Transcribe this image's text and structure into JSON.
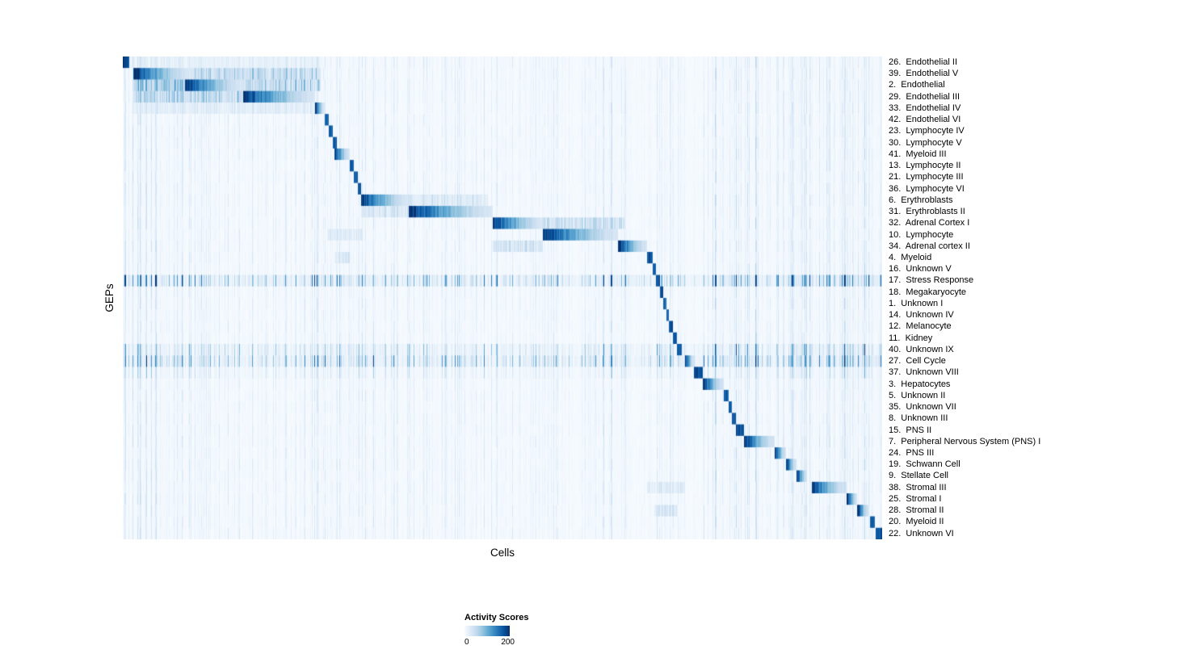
{
  "chart_data": {
    "type": "heatmap",
    "title": "",
    "xlabel": "Cells",
    "ylabel": "GEPs",
    "colorbar": {
      "title": "Activity Scores",
      "min": 0,
      "max": 200,
      "min_label": "0",
      "max_label": "200"
    },
    "colormap": [
      "#f7fbff",
      "#deebf7",
      "#c6dbef",
      "#9ecae1",
      "#6baed6",
      "#4292c6",
      "#2171b5",
      "#08519c",
      "#08306b"
    ],
    "rows": [
      {
        "label": "26.  Endothelial II",
        "block": [
          0.0,
          0.008
        ],
        "peak": 200,
        "bands": [
          [
            0.008,
            0.26,
            15
          ]
        ]
      },
      {
        "label": "39.  Endothelial V",
        "block": [
          0.013,
          0.088
        ],
        "peak": 200,
        "bands": [
          [
            0.088,
            0.26,
            42
          ]
        ]
      },
      {
        "label": "2.  Endothelial",
        "block": [
          0.081,
          0.158
        ],
        "peak": 200,
        "bands": [
          [
            0.013,
            0.081,
            55
          ],
          [
            0.158,
            0.26,
            45
          ]
        ]
      },
      {
        "label": "29.  Endothelial III",
        "block": [
          0.158,
          0.253
        ],
        "peak": 200,
        "bands": [
          [
            0.013,
            0.158,
            45
          ]
        ]
      },
      {
        "label": "33.  Endothelial IV",
        "block": [
          0.253,
          0.265
        ],
        "peak": 190,
        "bands": [
          [
            0.013,
            0.253,
            18
          ]
        ]
      },
      {
        "label": "42.  Endothelial VI",
        "block": [
          0.265,
          0.271
        ],
        "peak": 180
      },
      {
        "label": "23.  Lymphocyte IV",
        "block": [
          0.271,
          0.276
        ],
        "peak": 180
      },
      {
        "label": "30.  Lymphocyte V",
        "block": [
          0.276,
          0.281
        ],
        "peak": 180
      },
      {
        "label": "41.  Myeloid III",
        "block": [
          0.278,
          0.298
        ],
        "peak": 200
      },
      {
        "label": "13.  Lymphocyte II",
        "block": [
          0.298,
          0.304
        ],
        "peak": 190
      },
      {
        "label": "21.  Lymphocyte III",
        "block": [
          0.304,
          0.309
        ],
        "peak": 185
      },
      {
        "label": "36.  Lymphocyte VI",
        "block": [
          0.309,
          0.313
        ],
        "peak": 180
      },
      {
        "label": "6.  Erythroblasts",
        "block": [
          0.313,
          0.376
        ],
        "peak": 200,
        "bands": [
          [
            0.376,
            0.48,
            24
          ]
        ]
      },
      {
        "label": "31.  Erythroblasts II",
        "block": [
          0.376,
          0.487
        ],
        "peak": 200,
        "bands": [
          [
            0.313,
            0.376,
            24
          ]
        ]
      },
      {
        "label": "32.  Adrenal Cortex I",
        "block": [
          0.487,
          0.553
        ],
        "peak": 200,
        "bands": [
          [
            0.553,
            0.66,
            35
          ]
        ]
      },
      {
        "label": "10.  Lymphocyte",
        "block": [
          0.553,
          0.652
        ],
        "peak": 200,
        "bands": [
          [
            0.27,
            0.315,
            20
          ]
        ]
      },
      {
        "label": "34.  Adrenal cortex II",
        "block": [
          0.652,
          0.69
        ],
        "peak": 200,
        "bands": [
          [
            0.487,
            0.553,
            30
          ]
        ]
      },
      {
        "label": "4.  Myeloid",
        "block": [
          0.69,
          0.697
        ],
        "peak": 190,
        "bands": [
          [
            0.278,
            0.298,
            25
          ]
        ]
      },
      {
        "label": "16.  Unknown V",
        "block": [
          0.697,
          0.702
        ],
        "peak": 185
      },
      {
        "label": "17.  Stress Response",
        "block": [
          0.702,
          0.707
        ],
        "peak": 190,
        "noise": 42
      },
      {
        "label": "18.  Megakaryocyte",
        "block": [
          0.707,
          0.711
        ],
        "peak": 185
      },
      {
        "label": "1.  Unknown I",
        "block": [
          0.711,
          0.715
        ],
        "peak": 180
      },
      {
        "label": "14.  Unknown IV",
        "block": [
          0.715,
          0.719
        ],
        "peak": 185
      },
      {
        "label": "12.  Melanocyte",
        "block": [
          0.719,
          0.724
        ],
        "peak": 190
      },
      {
        "label": "11.  Kidney",
        "block": [
          0.724,
          0.729
        ],
        "peak": 185
      },
      {
        "label": "40.  Unknown IX",
        "block": [
          0.729,
          0.736
        ],
        "peak": 190,
        "noise": 26
      },
      {
        "label": "27.  Cell Cycle",
        "block": [
          0.74,
          0.752
        ],
        "peak": 200,
        "noise": 38
      },
      {
        "label": "37.  Unknown VIII",
        "block": [
          0.752,
          0.763
        ],
        "peak": 200,
        "noise": 14
      },
      {
        "label": "3.  Hepatocytes",
        "block": [
          0.763,
          0.791
        ],
        "peak": 200
      },
      {
        "label": "5.  Unknown II",
        "block": [
          0.791,
          0.797
        ],
        "peak": 185
      },
      {
        "label": "35.  Unknown VII",
        "block": [
          0.797,
          0.802
        ],
        "peak": 185
      },
      {
        "label": "8.  Unknown III",
        "block": [
          0.802,
          0.807
        ],
        "peak": 185
      },
      {
        "label": "15.  PNS II",
        "block": [
          0.807,
          0.818
        ],
        "peak": 190
      },
      {
        "label": "7.  Peripheral Nervous System (PNS) I",
        "block": [
          0.818,
          0.858
        ],
        "peak": 200
      },
      {
        "label": "24.  PNS III",
        "block": [
          0.858,
          0.873
        ],
        "peak": 200
      },
      {
        "label": "19.  Schwann Cell",
        "block": [
          0.873,
          0.887
        ],
        "peak": 200
      },
      {
        "label": "9.  Stellate Cell",
        "block": [
          0.887,
          0.901
        ],
        "peak": 200
      },
      {
        "label": "38.  Stromal III",
        "block": [
          0.907,
          0.953
        ],
        "peak": 200,
        "bands": [
          [
            0.69,
            0.74,
            20
          ]
        ]
      },
      {
        "label": "25.  Stromal I",
        "block": [
          0.953,
          0.967
        ],
        "peak": 200
      },
      {
        "label": "28.  Stromal II",
        "block": [
          0.967,
          0.982
        ],
        "peak": 200,
        "bands": [
          [
            0.7,
            0.73,
            25
          ]
        ]
      },
      {
        "label": "20.  Myeloid II",
        "block": [
          0.984,
          0.99
        ],
        "peak": 190
      },
      {
        "label": "22.  Unknown VI",
        "block": [
          0.991,
          1.0
        ],
        "peak": 200
      }
    ]
  }
}
